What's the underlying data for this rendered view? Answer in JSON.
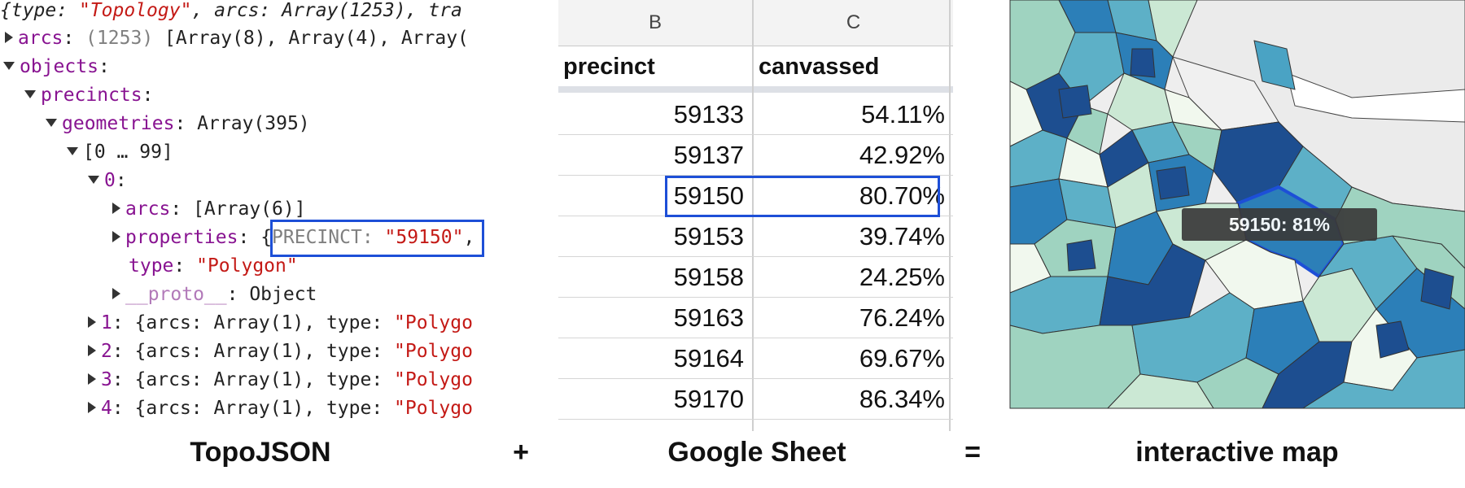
{
  "console": {
    "line0": {
      "open": "{",
      "type_key": "type",
      "colon_space": ": ",
      "type_val": "\"Topology\"",
      "sep": ", ",
      "arcs_key": "arcs",
      "arcs_val": ": Array(1253), ",
      "tra": "tra"
    },
    "arcs": {
      "key": "arcs",
      "count": " (1253) ",
      "preview": "[Array(8), Array(4), Array("
    },
    "objects": {
      "key": "objects",
      "colon": ":"
    },
    "precincts": {
      "key": "precincts",
      "colon": ":"
    },
    "geometries": {
      "key": "geometries",
      "value": ": Array(395)"
    },
    "range": "[0 … 99]",
    "item0": {
      "key": "0",
      "colon": ":"
    },
    "item_arcs": {
      "key": "arcs",
      "value": ": [Array(6)]"
    },
    "properties": {
      "key": "properties",
      "colon": ": ",
      "brace": "{",
      "prec_key": "PRECINCT: ",
      "prec_val": "\"59150\"",
      "trail": ","
    },
    "type_line": {
      "key": "type",
      "colon": ": ",
      "value": "\"Polygon\""
    },
    "proto": {
      "key": "__proto__",
      "value": ": Object"
    },
    "items": [
      {
        "idx": "1",
        "text": ": {arcs: Array(1), type: ",
        "type": "\"Polygo"
      },
      {
        "idx": "2",
        "text": ": {arcs: Array(1), type: ",
        "type": "\"Polygo"
      },
      {
        "idx": "3",
        "text": ": {arcs: Array(1), type: ",
        "type": "\"Polygo"
      },
      {
        "idx": "4",
        "text": ": {arcs: Array(1), type: ",
        "type": "\"Polygo"
      }
    ]
  },
  "sheet": {
    "columns": [
      "B",
      "C"
    ],
    "headers": {
      "precinct": "precinct",
      "canvassed": "canvassed"
    },
    "rows": [
      {
        "precinct": "59133",
        "canvassed": "54.11%"
      },
      {
        "precinct": "59137",
        "canvassed": "42.92%"
      },
      {
        "precinct": "59150",
        "canvassed": "80.70%"
      },
      {
        "precinct": "59153",
        "canvassed": "39.74%"
      },
      {
        "precinct": "59158",
        "canvassed": "24.25%"
      },
      {
        "precinct": "59163",
        "canvassed": "76.24%"
      },
      {
        "precinct": "59164",
        "canvassed": "69.67%"
      },
      {
        "precinct": "59170",
        "canvassed": "86.34%"
      }
    ],
    "highlighted_row": "59150"
  },
  "map": {
    "tooltip": "59150: 81%",
    "colors": {
      "light": "#f1f8ee",
      "pale": "#cbe8d4",
      "mint": "#9fd3c0",
      "teal": "#5db0c7",
      "blue": "#2c7fb8",
      "navy": "#1d4e90",
      "gray": "#ededed",
      "highlight": "#1d4fd7"
    }
  },
  "captions": {
    "topojson": "TopoJSON",
    "plus": "+",
    "sheet": "Google Sheet",
    "equals": "=",
    "map": "interactive map"
  }
}
